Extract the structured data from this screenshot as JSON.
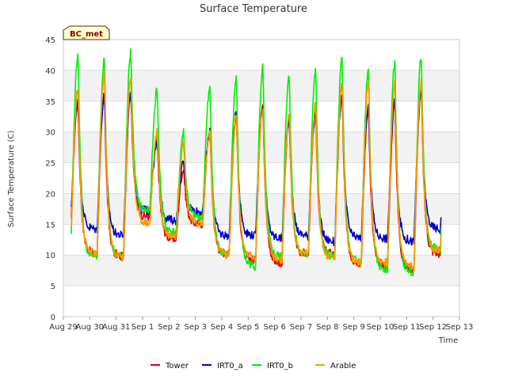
{
  "chart_data": {
    "type": "line",
    "title": "Surface Temperature",
    "xlabel": "Time",
    "ylabel": "Surface Temperature (C)",
    "site_label": "BC_met",
    "ylim": [
      0,
      45
    ],
    "yticks": [
      0,
      5,
      10,
      15,
      20,
      25,
      30,
      35,
      40,
      45
    ],
    "xlim": [
      "Aug 29",
      "Sep 13"
    ],
    "xtick_labels": [
      "Aug 29",
      "Aug 30",
      "Aug 31",
      "Sep 1",
      "Sep 2",
      "Sep 3",
      "Sep 4",
      "Sep 5",
      "Sep 6",
      "Sep 7",
      "Sep 8",
      "Sep 9",
      "Sep 10",
      "Sep 11",
      "Sep 12",
      "Sep 13"
    ],
    "grid": true,
    "shaded_bands": [
      [
        5,
        10
      ],
      [
        15,
        20
      ],
      [
        25,
        30
      ],
      [
        35,
        40
      ]
    ],
    "legend_position": "bottom",
    "daily_extremes": {
      "x": [
        "Aug 29",
        "Aug 30",
        "Aug 31",
        "Sep 1",
        "Sep 2",
        "Sep 3",
        "Sep 4",
        "Sep 5",
        "Sep 6",
        "Sep 7",
        "Sep 8",
        "Sep 9",
        "Sep 10",
        "Sep 11",
        "Sep 12"
      ],
      "note_fields": [
        "min",
        "max"
      ]
    },
    "series": [
      {
        "name": "Tower",
        "color": "#dd0000",
        "min": [
          13,
          10,
          9.5,
          16,
          12.5,
          15,
          10,
          9,
          8.5,
          10,
          10,
          8.5,
          8,
          7.5,
          10
        ],
        "max": [
          35,
          36,
          37,
          29,
          24,
          30,
          33,
          35,
          32,
          33,
          36,
          34,
          35,
          37,
          37
        ]
      },
      {
        "name": "IRT0_a",
        "color": "#0000cc",
        "min": [
          15,
          14,
          13,
          17,
          15.5,
          17,
          13,
          13,
          12.5,
          13,
          12,
          12.5,
          12.5,
          12,
          14
        ],
        "max": [
          35,
          36,
          36.5,
          28,
          25,
          30,
          33,
          34,
          32,
          33,
          36,
          34,
          35,
          37,
          36
        ]
      },
      {
        "name": "IRT0_b",
        "color": "#00ee00",
        "min": [
          9,
          9.5,
          9.5,
          17,
          13.5,
          16,
          10,
          8,
          9.5,
          10,
          9.5,
          8.5,
          7.5,
          7,
          10.5
        ],
        "max": [
          43,
          42,
          43,
          37,
          30,
          37,
          39,
          40.5,
          39,
          40,
          42,
          40,
          41.5,
          42.5,
          42
        ]
      },
      {
        "name": "Arable",
        "color": "#ff9900",
        "min": [
          11,
          10,
          9.5,
          15,
          13,
          15,
          10,
          9.5,
          9,
          10,
          9.5,
          8.5,
          8.5,
          8,
          10.5
        ],
        "max": [
          37,
          39.5,
          39,
          30,
          28.5,
          30,
          33,
          34,
          32.5,
          34.5,
          38,
          38,
          38,
          38.5,
          38
        ]
      }
    ]
  }
}
